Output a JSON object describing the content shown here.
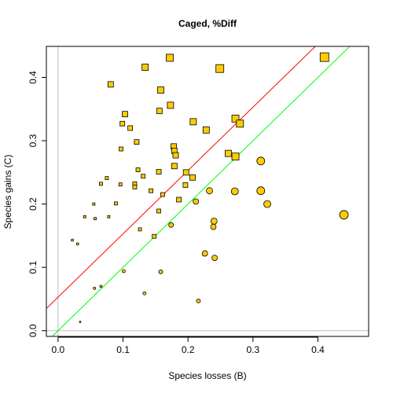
{
  "chart_data": {
    "type": "scatter",
    "title": "Caged, %Diff",
    "xlabel": "Species losses (B)",
    "ylabel": "Species gains (C)",
    "xlim": [
      -0.018,
      0.478
    ],
    "ylim": [
      -0.009,
      0.449
    ],
    "x_ticks": [
      "0.0",
      "0.1",
      "0.2",
      "0.3",
      "0.4"
    ],
    "y_ticks": [
      "0.0",
      "0.1",
      "0.2",
      "0.3",
      "0.4"
    ],
    "x_tick_values": [
      0,
      0.1,
      0.2,
      0.3,
      0.4
    ],
    "y_tick_values": [
      0,
      0.1,
      0.2,
      0.3,
      0.4
    ],
    "grid": false,
    "colors": {
      "point_fill": "#FFCC00",
      "point_stroke": "#000000",
      "red_line": "#FF0000",
      "green_line": "#00FF00",
      "ref_line": "#BEBEBE",
      "frame": "#000000"
    },
    "lines": [
      {
        "color": "red",
        "intercept": 0.053,
        "slope": 1.0
      },
      {
        "color": "green",
        "intercept": 0.0,
        "slope": 1.0
      }
    ],
    "reference_lines": {
      "x": 0,
      "y": 0
    },
    "series": [
      {
        "marker": "square",
        "points": [
          [
            0.41,
            0.432,
            5.5
          ],
          [
            0.172,
            0.431,
            4.5
          ],
          [
            0.134,
            0.416,
            4
          ],
          [
            0.249,
            0.414,
            5
          ],
          [
            0.081,
            0.389,
            3.5
          ],
          [
            0.158,
            0.38,
            4
          ],
          [
            0.173,
            0.356,
            4
          ],
          [
            0.156,
            0.347,
            3.5
          ],
          [
            0.103,
            0.342,
            3.5
          ],
          [
            0.273,
            0.335,
            4.5
          ],
          [
            0.28,
            0.327,
            4.5
          ],
          [
            0.208,
            0.33,
            4
          ],
          [
            0.099,
            0.327,
            3
          ],
          [
            0.111,
            0.32,
            3
          ],
          [
            0.228,
            0.317,
            4
          ],
          [
            0.121,
            0.298,
            3
          ],
          [
            0.178,
            0.291,
            3.5
          ],
          [
            0.097,
            0.287,
            2.5
          ],
          [
            0.179,
            0.284,
            3.5
          ],
          [
            0.262,
            0.28,
            4
          ],
          [
            0.181,
            0.277,
            3.5
          ],
          [
            0.273,
            0.275,
            4.5
          ],
          [
            0.179,
            0.26,
            3.5
          ],
          [
            0.123,
            0.254,
            2.5
          ],
          [
            0.155,
            0.251,
            3
          ],
          [
            0.197,
            0.25,
            3.5
          ],
          [
            0.131,
            0.244,
            2.5
          ],
          [
            0.075,
            0.241,
            2
          ],
          [
            0.207,
            0.242,
            3.5
          ],
          [
            0.066,
            0.232,
            2
          ],
          [
            0.118,
            0.232,
            2.5
          ],
          [
            0.096,
            0.231,
            2
          ],
          [
            0.118,
            0.227,
            2.5
          ],
          [
            0.196,
            0.23,
            3
          ],
          [
            0.143,
            0.221,
            2.5
          ],
          [
            0.161,
            0.215,
            2.5
          ],
          [
            0.186,
            0.207,
            3
          ],
          [
            0.089,
            0.201,
            2
          ],
          [
            0.055,
            0.2,
            1.5
          ],
          [
            0.041,
            0.18,
            1.5
          ],
          [
            0.078,
            0.18,
            1.5
          ],
          [
            0.057,
            0.177,
            1.5
          ],
          [
            0.155,
            0.189,
            2.5
          ],
          [
            0.126,
            0.16,
            2
          ],
          [
            0.148,
            0.149,
            2.5
          ]
        ]
      },
      {
        "marker": "circle",
        "points": [
          [
            0.44,
            0.183,
            5.5
          ],
          [
            0.312,
            0.268,
            5
          ],
          [
            0.312,
            0.221,
            5
          ],
          [
            0.322,
            0.2,
            4.5
          ],
          [
            0.272,
            0.22,
            4.5
          ],
          [
            0.233,
            0.221,
            4
          ],
          [
            0.212,
            0.204,
            3.5
          ],
          [
            0.24,
            0.173,
            4
          ],
          [
            0.239,
            0.164,
            3.5
          ],
          [
            0.174,
            0.167,
            3
          ],
          [
            0.226,
            0.122,
            3.5
          ],
          [
            0.241,
            0.115,
            3.5
          ],
          [
            0.158,
            0.093,
            2.5
          ],
          [
            0.101,
            0.094,
            2
          ],
          [
            0.216,
            0.047,
            2.5
          ],
          [
            0.133,
            0.059,
            2
          ],
          [
            0.066,
            0.07,
            1.5
          ],
          [
            0.056,
            0.067,
            1.5
          ],
          [
            0.022,
            0.143,
            1.5
          ],
          [
            0.03,
            0.137,
            1.5
          ],
          [
            0.034,
            0.014,
            1
          ]
        ]
      }
    ]
  }
}
